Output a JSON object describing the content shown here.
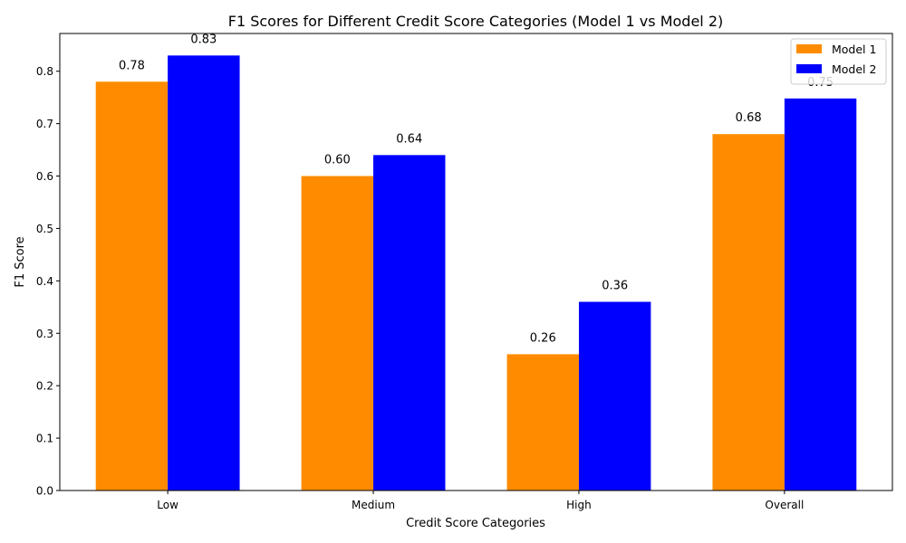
{
  "chart_data": {
    "type": "bar",
    "title": "F1 Scores for Different Credit Score Categories (Model 1 vs Model 2)",
    "xlabel": "Credit Score Categories",
    "ylabel": "F1 Score",
    "categories": [
      "Low",
      "Medium",
      "High",
      "Overall"
    ],
    "series": [
      {
        "name": "Model 1",
        "color": "#ff8c00",
        "values": [
          0.78,
          0.6,
          0.26,
          0.68
        ],
        "labels": [
          "0.78",
          "0.60",
          "0.26",
          "0.68"
        ]
      },
      {
        "name": "Model 2",
        "color": "#0000ff",
        "values": [
          0.83,
          0.64,
          0.36,
          0.748
        ],
        "labels": [
          "0.83",
          "0.64",
          "0.36",
          "0.75"
        ]
      }
    ],
    "ylim": [
      0,
      0.872
    ],
    "yticks": [
      0.0,
      0.1,
      0.2,
      0.3,
      0.4,
      0.5,
      0.6,
      0.7,
      0.8
    ],
    "ytick_labels": [
      "0.0",
      "0.1",
      "0.2",
      "0.3",
      "0.4",
      "0.5",
      "0.6",
      "0.7",
      "0.8"
    ],
    "grid": false,
    "legend_position": "top-right"
  }
}
